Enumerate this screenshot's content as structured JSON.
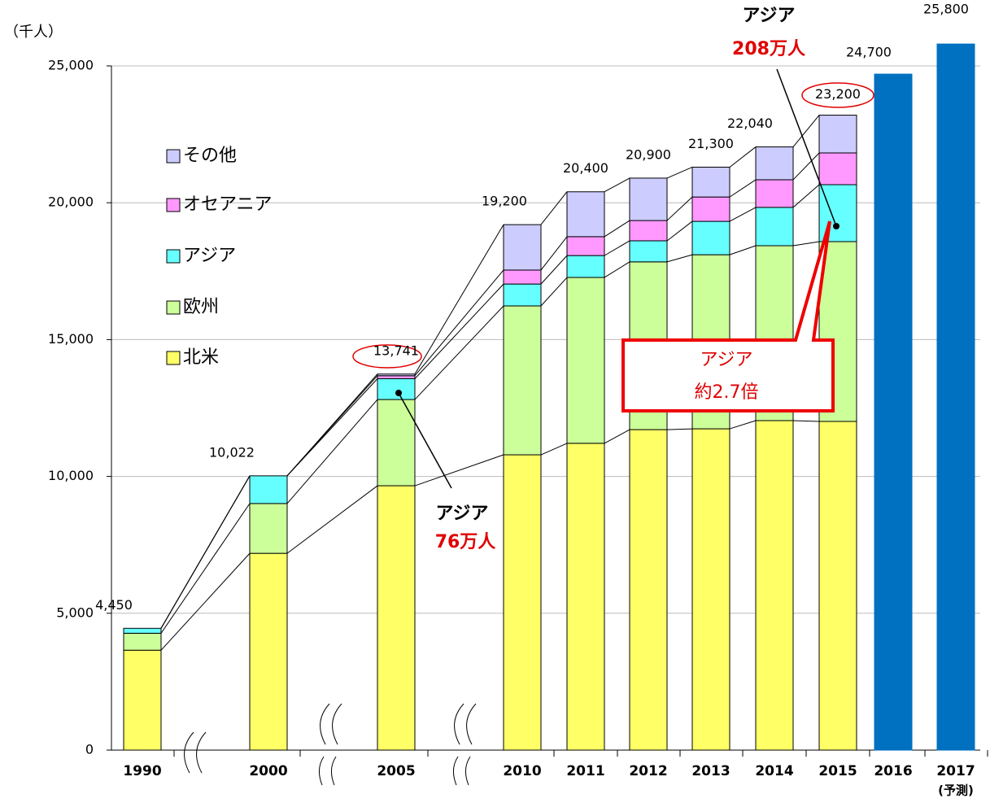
{
  "chart_data": {
    "type": "stacked_bar",
    "y_unit_label": "（千人）",
    "categories": [
      "1990",
      "2000",
      "2005",
      "2010",
      "2011",
      "2012",
      "2013",
      "2014",
      "2015",
      "2016",
      "2017"
    ],
    "x_note": "(予測)",
    "series": [
      {
        "name": "北米",
        "color": "#ffff66",
        "values": [
          3650,
          7190,
          9660,
          10790,
          11210,
          11710,
          11740,
          12040,
          12010,
          null,
          null
        ]
      },
      {
        "name": "欧州",
        "color": "#ccff99",
        "values": [
          620,
          1820,
          3150,
          5440,
          6060,
          6130,
          6360,
          6390,
          6570,
          null,
          null
        ]
      },
      {
        "name": "アジア",
        "color": "#66ffff",
        "values": [
          180,
          1012,
          760,
          800,
          800,
          770,
          1220,
          1400,
          2080,
          null,
          null
        ]
      },
      {
        "name": "オセアニア",
        "color": "#ff99ff",
        "values": [
          0,
          0,
          110,
          510,
          690,
          740,
          890,
          1010,
          1160,
          null,
          null
        ]
      },
      {
        "name": "その他",
        "color": "#ccccff",
        "values": [
          0,
          0,
          61,
          1660,
          1640,
          1550,
          1090,
          1200,
          1380,
          null,
          null
        ]
      },
      {
        "color": "#0070c0",
        "values": [
          null,
          null,
          null,
          null,
          null,
          null,
          null,
          null,
          null,
          24700,
          25800
        ]
      }
    ],
    "totals": {
      "values": [
        4450,
        10022,
        13741,
        19200,
        20400,
        20900,
        21300,
        22040,
        23200,
        24700,
        25800
      ],
      "value_labels": [
        "4,450",
        "10,022",
        "13,741",
        "19,200",
        "20,400",
        "20,900",
        "21,300",
        "22,040",
        "23,200",
        "24,700",
        "25,800"
      ]
    },
    "ylim": [
      0,
      25000
    ],
    "yticks": [
      0,
      {
        "value": 5000,
        "label": "5,000"
      },
      {
        "value": 10000,
        "label": "10,000"
      },
      {
        "value": 15000,
        "label": "15,000"
      },
      {
        "value": 20000,
        "label": "20,000"
      },
      {
        "value": 25000,
        "label": "25,000"
      }
    ],
    "grid": true,
    "annotations": [
      "アジア",
      "76万人",
      "アジア",
      "208万人",
      "アジア",
      "約2.7倍"
    ]
  }
}
